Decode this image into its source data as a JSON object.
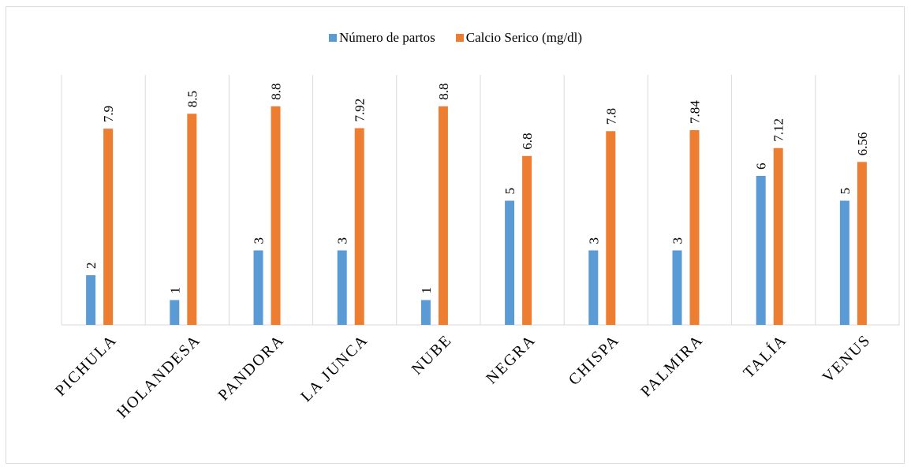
{
  "legend": {
    "series_0": "Número de partos",
    "series_1": "Calcio Serico (mg/dl)"
  },
  "colors": {
    "series_0": "#5b9bd5",
    "series_1": "#ed7d31",
    "gridline": "#d9d9d9",
    "axis": "#d9d9d9"
  },
  "chart_data": {
    "type": "bar",
    "categories": [
      "PICHULA",
      "HOLANDESA",
      "PANDORA",
      "LA JUNCA",
      "NUBE",
      "NEGRA",
      "CHISPA",
      "PALMIRA",
      "TALÍA",
      "VENUS"
    ],
    "series": [
      {
        "name": "Número de partos",
        "values": [
          2,
          1,
          3,
          3,
          1,
          5,
          3,
          3,
          6,
          5
        ],
        "labels": [
          "2",
          "1",
          "3",
          "3",
          "1",
          "5",
          "3",
          "3",
          "6",
          "5"
        ]
      },
      {
        "name": "Calcio Serico (mg/dl)",
        "values": [
          7.9,
          8.5,
          8.8,
          7.92,
          8.8,
          6.8,
          7.8,
          7.84,
          7.12,
          6.56
        ],
        "labels": [
          "7.9",
          "8.5",
          "8.8",
          "7.92",
          "8.8",
          "6.8",
          "7.8",
          "7.84",
          "7.12",
          "6.56"
        ]
      }
    ],
    "ylim": [
      0,
      10
    ],
    "grid": "vertical separators between categories",
    "legend_position": "top",
    "title": "",
    "xlabel": "",
    "ylabel": ""
  }
}
